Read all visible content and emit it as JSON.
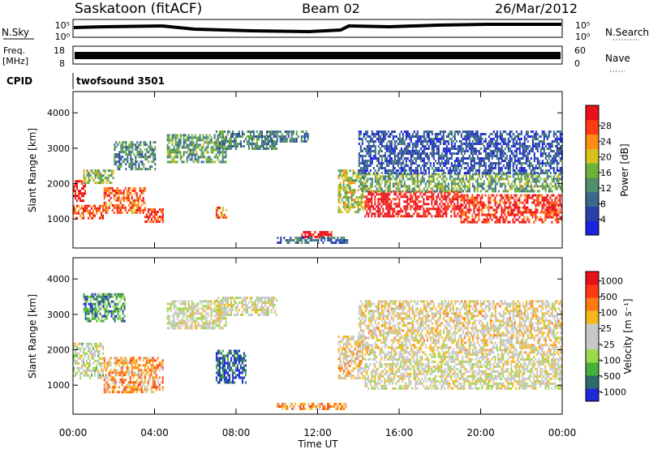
{
  "header": {
    "station": "Saskatoon (fitACF)",
    "beam": "Beam 02",
    "date": "26/Mar/2012"
  },
  "top_panels": {
    "nsky_label": "N.Sky",
    "nsky_ticks": [
      "10^5",
      "10^0"
    ],
    "nsearch_label": "N.Search",
    "nsearch_ticks": [
      "10^5",
      "10^0"
    ],
    "freq_label_1": "Freq.",
    "freq_label_2": "[MHz]",
    "freq_ticks": [
      "18",
      "8"
    ],
    "nave_label": "Nave",
    "nave_ticks": [
      "60",
      "0"
    ],
    "cpid_label": "CPID",
    "cpid_value": "twofsound 3501"
  },
  "chart_data": [
    {
      "type": "heatmap",
      "name": "power",
      "xlabel": "Time UT",
      "ylabel": "Slant Range [km]",
      "xlim": [
        0,
        24
      ],
      "ylim": [
        180,
        4600
      ],
      "y_ticks": [
        "1000",
        "2000",
        "3000",
        "4000"
      ],
      "x_ticks": [
        "00:00",
        "04:00",
        "08:00",
        "12:00",
        "16:00",
        "20:00",
        "00:00"
      ],
      "colorbar": {
        "label": "Power [dB]",
        "ticks": [
          "4",
          "8",
          "12",
          "16",
          "20",
          "24",
          "28"
        ],
        "colors": [
          "#1a22e0",
          "#2a3fa8",
          "#3a6a8a",
          "#4f8f6a",
          "#6fb03a",
          "#d6c21a",
          "#ff8c14",
          "#ff3a10",
          "#e8101a"
        ]
      },
      "regions": [
        {
          "t": [
            0.0,
            0.6
          ],
          "r": [
            1500,
            2100
          ],
          "level": 0.95
        },
        {
          "t": [
            0.0,
            1.5
          ],
          "r": [
            1050,
            1400
          ],
          "level": 0.85
        },
        {
          "t": [
            1.5,
            3.5
          ],
          "r": [
            1200,
            1900
          ],
          "level": 0.8
        },
        {
          "t": [
            3.5,
            4.4
          ],
          "r": [
            900,
            1300
          ],
          "level": 0.9
        },
        {
          "t": [
            0.5,
            2.0
          ],
          "r": [
            2000,
            2400
          ],
          "level": 0.5
        },
        {
          "t": [
            2.0,
            4.0
          ],
          "r": [
            2400,
            3200
          ],
          "level": 0.35
        },
        {
          "t": [
            4.6,
            7.5
          ],
          "r": [
            2600,
            3400
          ],
          "level": 0.4
        },
        {
          "t": [
            7.0,
            10.0
          ],
          "r": [
            3000,
            3500
          ],
          "level": 0.35
        },
        {
          "t": [
            9.5,
            11.5
          ],
          "r": [
            3200,
            3500
          ],
          "level": 0.3
        },
        {
          "t": [
            7.0,
            7.5
          ],
          "r": [
            1050,
            1350
          ],
          "level": 0.75
        },
        {
          "t": [
            11.2,
            12.7
          ],
          "r": [
            520,
            660
          ],
          "level": 1.0
        },
        {
          "t": [
            13.0,
            14.2
          ],
          "r": [
            1200,
            2400
          ],
          "level": 0.55
        },
        {
          "t": [
            14.3,
            19.0
          ],
          "r": [
            1100,
            1800
          ],
          "level": 0.95
        },
        {
          "t": [
            19.0,
            24.0
          ],
          "r": [
            900,
            1700
          ],
          "level": 0.9
        },
        {
          "t": [
            14.0,
            24.0
          ],
          "r": [
            1800,
            2300
          ],
          "level": 0.45
        },
        {
          "t": [
            14.0,
            24.0
          ],
          "r": [
            2300,
            3500
          ],
          "level": 0.2
        },
        {
          "t": [
            10.0,
            13.5
          ],
          "r": [
            300,
            500
          ],
          "level": 0.25
        }
      ]
    },
    {
      "type": "heatmap",
      "name": "velocity",
      "xlabel": "Time UT",
      "ylabel": "Slant Range [km]",
      "xlim": [
        0,
        24
      ],
      "ylim": [
        180,
        4600
      ],
      "y_ticks": [
        "1000",
        "2000",
        "3000",
        "4000"
      ],
      "x_ticks": [
        "00:00",
        "04:00",
        "08:00",
        "12:00",
        "16:00",
        "20:00",
        "00:00"
      ],
      "colorbar": {
        "label": "Velocity [m s^-1]",
        "ticks": [
          "1000",
          "500",
          "100",
          "25",
          "-25",
          "-100",
          "-500",
          "-1000"
        ],
        "colors": [
          "#1c2ad8",
          "#2e6a6a",
          "#46b03a",
          "#9ad94a",
          "#c8c8c8",
          "#c8c8c8",
          "#f5b81a",
          "#ff7a10",
          "#ff3a10",
          "#e8101a"
        ]
      },
      "regions": [
        {
          "t": [
            0.0,
            1.5
          ],
          "r": [
            1200,
            2200
          ],
          "level": 0.45
        },
        {
          "t": [
            1.5,
            4.4
          ],
          "r": [
            800,
            1800
          ],
          "level": 0.7
        },
        {
          "t": [
            0.5,
            2.5
          ],
          "r": [
            2800,
            3600
          ],
          "level": 0.2
        },
        {
          "t": [
            4.6,
            7.5
          ],
          "r": [
            2600,
            3400
          ],
          "level": 0.5
        },
        {
          "t": [
            7.0,
            10.0
          ],
          "r": [
            3000,
            3500
          ],
          "level": 0.5
        },
        {
          "t": [
            7.0,
            8.5
          ],
          "r": [
            1100,
            2000
          ],
          "level": 0.1
        },
        {
          "t": [
            10.0,
            13.5
          ],
          "r": [
            300,
            500
          ],
          "level": 0.7
        },
        {
          "t": [
            13.0,
            14.2
          ],
          "r": [
            1200,
            2400
          ],
          "level": 0.6
        },
        {
          "t": [
            14.3,
            24.0
          ],
          "r": [
            900,
            1900
          ],
          "level": 0.5
        },
        {
          "t": [
            14.0,
            24.0
          ],
          "r": [
            1900,
            3400
          ],
          "level": 0.55
        }
      ]
    }
  ]
}
